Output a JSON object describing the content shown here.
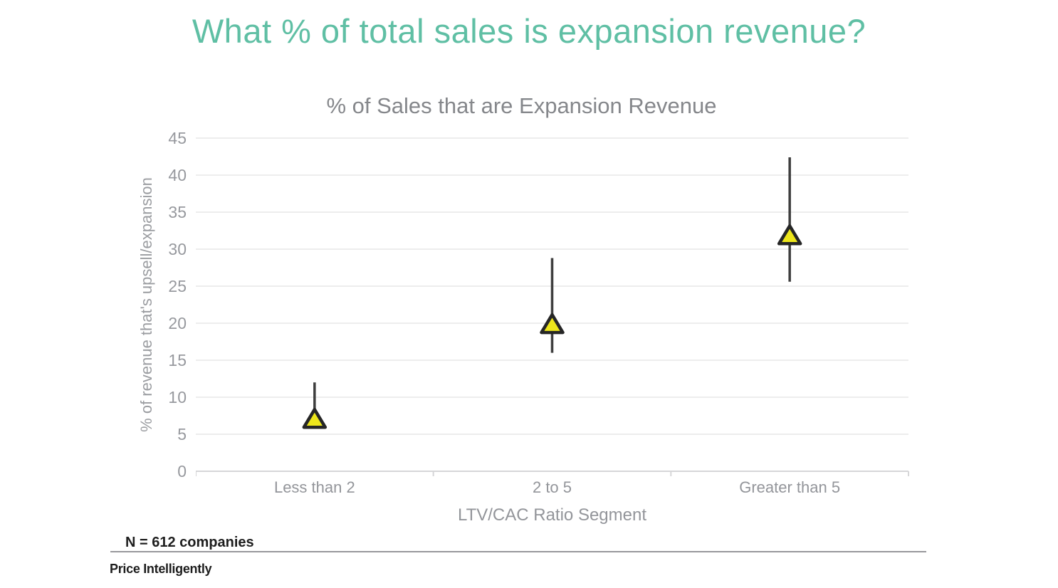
{
  "page": {
    "title": "What % of total sales is expansion revenue?",
    "footnote": "N = 612 companies",
    "brand": "Price Intelligently"
  },
  "colors": {
    "title": "#5FBFA4",
    "chart_title": "#85878B",
    "axis_text": "#9B9DA1",
    "gridline": "#EDEDED",
    "axis_line": "#D6D6D8",
    "whisker": "#3E3E3E",
    "marker_fill": "#EDE61B",
    "marker_stroke": "#262626",
    "footnote_text": "#1E1E1E",
    "divider": "#98989C",
    "brand_text": "#1D1D1D"
  },
  "chart_data": {
    "type": "scatter",
    "subtype": "point-with-vertical-range-bar",
    "title": "% of Sales that are Expansion Revenue",
    "xlabel": "LTV/CAC Ratio Segment",
    "ylabel": "% of revenue that's upsell/expansion",
    "categories": [
      "Less than 2",
      "2 to 5",
      "Greater than 5"
    ],
    "series": [
      {
        "name": "% of revenue that's upsell/expansion",
        "marker": "triangle-up",
        "values": [
          7,
          19.8,
          31.8
        ],
        "range_low": [
          6,
          16,
          25.6
        ],
        "range_high": [
          12,
          28.8,
          42.4
        ]
      }
    ],
    "ylim": [
      0,
      45
    ],
    "y_ticks": [
      0,
      5,
      10,
      15,
      20,
      25,
      30,
      35,
      40,
      45
    ],
    "grid": "horizontal",
    "legend": "none",
    "annotation": "N = 612 companies"
  }
}
